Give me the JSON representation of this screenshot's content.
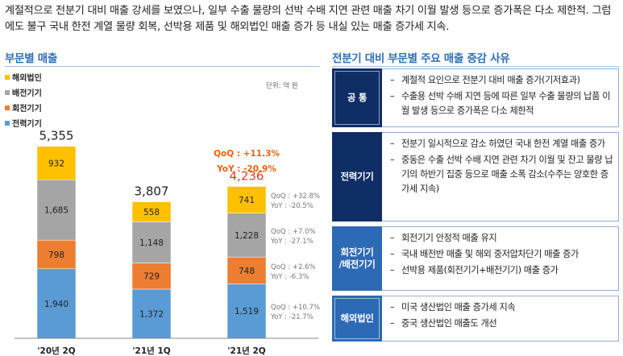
{
  "headline": "계절적으로 전분기 대비 매출 강세를 보였으나, 일부 수출 물량의 선박 수배 지연 관련 매출 차기 이월 발생 등으로 증가폭은 다소 제한적. 그럼에도 불구 국내 한전 계열 물량 회복, 선박용 제품 및 해외법인 매출 증가 등 내실 있는 매출 증가세 지속.",
  "left_title": "부문별 매출",
  "right_title": "전분기 대비 부문별 주요 매출 증감 사유",
  "chart_data": {
    "type": "bar",
    "stacked": true,
    "unit_label": "단위: 억 원",
    "categories": [
      "'20년 2Q",
      "'21년 1Q",
      "'21년 2Q"
    ],
    "totals": [
      "5,355",
      "3,807",
      "4,236"
    ],
    "series": [
      {
        "name": "전력기기",
        "color": "#5b9bd5",
        "values": [
          1940,
          1372,
          1519
        ],
        "labels": [
          "1,940",
          "1,372",
          "1,519"
        ]
      },
      {
        "name": "회전기기",
        "color": "#ed7d31",
        "values": [
          798,
          729,
          748
        ],
        "labels": [
          "798",
          "729",
          "748"
        ]
      },
      {
        "name": "배전기기",
        "color": "#a5a5a5",
        "values": [
          1685,
          1148,
          1228
        ],
        "labels": [
          "1,685",
          "1,148",
          "1,228"
        ]
      },
      {
        "name": "해외법인",
        "color": "#ffc000",
        "values": [
          932,
          558,
          741
        ],
        "labels": [
          "932",
          "558",
          "741"
        ]
      }
    ],
    "legend": {
      "placement": "top-left",
      "order": [
        "해외법인",
        "배전기기",
        "회전기기",
        "전력기기"
      ]
    },
    "total_change": {
      "qoq": "QoQ : +11.3%",
      "yoy": "YoY : -20.9%"
    },
    "segment_changes": [
      {
        "series": "해외법인",
        "qoq": "QoQ : +32.8%",
        "yoy": "YoY : -20.5%"
      },
      {
        "series": "배전기기",
        "qoq": "QoQ : +7.0%",
        "yoy": "YoY : -27.1%"
      },
      {
        "series": "회전기기",
        "qoq": "QoQ : +2.6%",
        "yoy": "YoY : -6.3%"
      },
      {
        "series": "전력기기",
        "qoq": "QoQ : +10.7%",
        "yoy": "YoY : -21.7%"
      }
    ],
    "highlight_color": "#e03c1f"
  },
  "reasons": [
    {
      "label": "공 통",
      "bullets": [
        "계절적 요인으로 전분기 대비 매출 증가(기저효과)",
        "수출용 선박 수배 지연 등에 따른 일부 수출 물량의 납품 이월 발생 등으로 증가폭은 다소 제한적"
      ]
    },
    {
      "label": "전력기기",
      "bullets": [
        "전분기 일시적으로 감소 하였던 국내 한전 계열 매출 증가",
        "중동은 수출 선박 수배 지연 관련 차기 이월 및 잔고 물량 납기의 하반기 집중 등으로 매출 소폭 감소(수주는 양호한 증가세 지속)"
      ]
    },
    {
      "label": "회전기기\n/배전기기",
      "bullets": [
        "회전기기 안정적 매출 유지",
        "국내 배전반 매출 및 해외 중저압차단기 매출 증가",
        "선박용 제품(회전기기+배전기기) 매출 증가"
      ]
    },
    {
      "label": "해외법인",
      "bullets": [
        "미국 생산법인 매출 증가세 지속",
        "중국 생산법인 매출도 개선"
      ]
    }
  ]
}
